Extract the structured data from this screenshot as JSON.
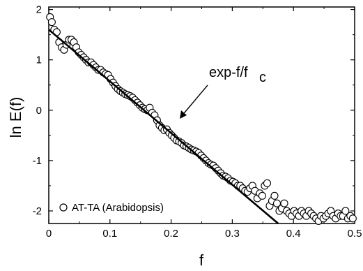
{
  "chart_data": {
    "type": "scatter",
    "xlabel": "f",
    "ylabel": "ln E(f)",
    "xlim": [
      0,
      0.5
    ],
    "ylim": [
      -2.25,
      2.05
    ],
    "x_ticks": [
      0,
      0.1,
      0.2,
      0.3,
      0.4,
      0.5
    ],
    "x_tick_labels": [
      "0",
      "0.1",
      "0.2",
      "0.3",
      "0.4",
      "0.5"
    ],
    "y_ticks": [
      2,
      1,
      0,
      -1,
      -2
    ],
    "y_tick_labels": [
      "2",
      "1",
      "0",
      "-1",
      "-2"
    ],
    "grid": false,
    "legend_position": "bottom-left",
    "series": [
      {
        "name": "AT-TA (Arabidopsis)",
        "marker": "open-circle",
        "x": [
          0.002,
          0.005,
          0.009,
          0.013,
          0.017,
          0.021,
          0.025,
          0.029,
          0.033,
          0.037,
          0.041,
          0.045,
          0.049,
          0.053,
          0.057,
          0.061,
          0.065,
          0.069,
          0.073,
          0.077,
          0.081,
          0.085,
          0.089,
          0.093,
          0.097,
          0.101,
          0.105,
          0.109,
          0.113,
          0.117,
          0.121,
          0.125,
          0.129,
          0.133,
          0.137,
          0.141,
          0.145,
          0.149,
          0.153,
          0.157,
          0.161,
          0.165,
          0.169,
          0.173,
          0.177,
          0.181,
          0.185,
          0.189,
          0.193,
          0.197,
          0.201,
          0.205,
          0.209,
          0.213,
          0.217,
          0.221,
          0.225,
          0.229,
          0.233,
          0.237,
          0.241,
          0.245,
          0.249,
          0.253,
          0.257,
          0.261,
          0.265,
          0.269,
          0.273,
          0.277,
          0.281,
          0.285,
          0.289,
          0.293,
          0.297,
          0.301,
          0.305,
          0.309,
          0.313,
          0.317,
          0.321,
          0.325,
          0.329,
          0.333,
          0.337,
          0.341,
          0.345,
          0.349,
          0.353,
          0.357,
          0.361,
          0.365,
          0.369,
          0.373,
          0.377,
          0.381,
          0.385,
          0.389,
          0.393,
          0.397,
          0.401,
          0.405,
          0.409,
          0.413,
          0.417,
          0.421,
          0.425,
          0.429,
          0.433,
          0.437,
          0.441,
          0.445,
          0.449,
          0.453,
          0.457,
          0.461,
          0.465,
          0.469,
          0.473,
          0.477,
          0.481,
          0.485,
          0.489,
          0.493,
          0.497
        ],
        "y": [
          1.85,
          1.75,
          1.6,
          1.55,
          1.35,
          1.25,
          1.2,
          1.3,
          1.4,
          1.4,
          1.35,
          1.25,
          1.15,
          1.1,
          1.05,
          1.0,
          0.95,
          0.95,
          0.9,
          0.85,
          0.8,
          0.8,
          0.75,
          0.72,
          0.7,
          0.62,
          0.55,
          0.48,
          0.42,
          0.38,
          0.35,
          0.32,
          0.3,
          0.28,
          0.25,
          0.2,
          0.15,
          0.1,
          0.05,
          0.02,
          0.0,
          0.05,
          -0.05,
          -0.1,
          -0.2,
          -0.3,
          -0.35,
          -0.4,
          -0.38,
          -0.45,
          -0.5,
          -0.55,
          -0.6,
          -0.62,
          -0.65,
          -0.7,
          -0.72,
          -0.75,
          -0.78,
          -0.8,
          -0.82,
          -0.85,
          -0.9,
          -0.95,
          -1.0,
          -1.05,
          -1.08,
          -1.1,
          -1.15,
          -1.2,
          -1.25,
          -1.3,
          -1.32,
          -1.35,
          -1.4,
          -1.42,
          -1.45,
          -1.5,
          -1.5,
          -1.55,
          -1.6,
          -1.62,
          -1.55,
          -1.5,
          -1.6,
          -1.75,
          -1.65,
          -1.7,
          -1.5,
          -1.45,
          -1.9,
          -1.8,
          -1.7,
          -1.85,
          -2.0,
          -1.95,
          -1.85,
          -2.0,
          -2.05,
          -2.1,
          -2.0,
          -2.05,
          -2.1,
          -2.0,
          -2.05,
          -2.1,
          -2.0,
          -2.05,
          -2.1,
          -2.15,
          -2.2,
          -2.1,
          -2.15,
          -2.1,
          -2.05,
          -2.0,
          -2.1,
          -2.15,
          -2.05,
          -2.1,
          -2.1,
          -2.0,
          -2.15,
          -2.1,
          -2.15
        ]
      }
    ],
    "fit_line": {
      "x": [
        0,
        0.375
      ],
      "y": [
        1.6,
        -2.25
      ]
    },
    "annotations": [
      {
        "text": "exp-f/f",
        "subscript": "c",
        "arrow_from": [
          0.25,
          0.75
        ],
        "arrow_to": [
          0.21,
          -0.3
        ]
      }
    ]
  },
  "legend": {
    "label": "AT-TA (Arabidopsis)"
  },
  "axes": {
    "xlabel": "f",
    "ylabel": "ln E(f)"
  },
  "annotation": {
    "text": "exp-f/f",
    "sub": "c"
  }
}
